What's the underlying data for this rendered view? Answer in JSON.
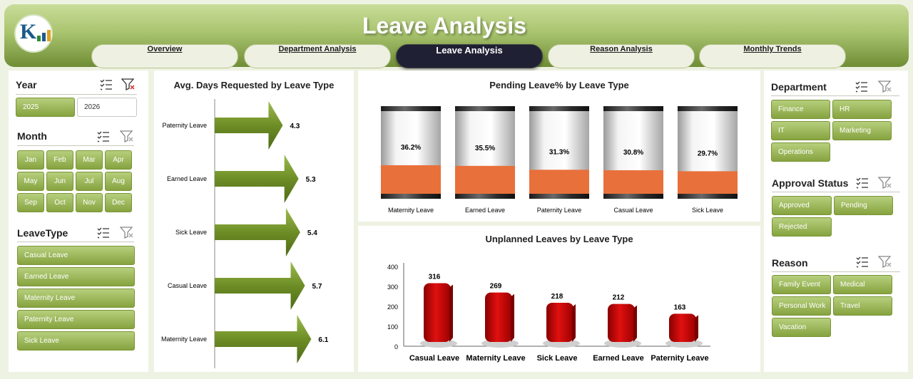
{
  "header": {
    "title": "Leave Analysis",
    "tabs": [
      "Overview",
      "Department Analysis",
      "Leave Analysis",
      "Reason Analysis",
      "Monthly Trends"
    ],
    "active_tab": "Leave Analysis"
  },
  "left_filters": {
    "year": {
      "title": "Year",
      "options": [
        "2025",
        "2026"
      ],
      "selected": "2025"
    },
    "month": {
      "title": "Month",
      "options": [
        "Jan",
        "Feb",
        "Mar",
        "Apr",
        "May",
        "Jun",
        "Jul",
        "Aug",
        "Sep",
        "Oct",
        "Nov",
        "Dec"
      ]
    },
    "leave_type": {
      "title": "LeaveType",
      "options": [
        "Casual Leave",
        "Earned Leave",
        "Maternity Leave",
        "Paternity Leave",
        "Sick Leave"
      ]
    }
  },
  "right_filters": {
    "department": {
      "title": "Department",
      "options": [
        "Finance",
        "HR",
        "IT",
        "Marketing",
        "Operations"
      ]
    },
    "approval": {
      "title": "Approval Status",
      "options": [
        "Approved",
        "Pending",
        "Rejected"
      ]
    },
    "reason": {
      "title": "Reason",
      "options": [
        "Family Event",
        "Medical",
        "Personal Work",
        "Travel",
        "Vacation"
      ]
    }
  },
  "chart_data": [
    {
      "type": "bar",
      "title": "Avg. Days Requested by Leave Type",
      "orientation": "horizontal",
      "categories": [
        "Paternity Leave",
        "Earned Leave",
        "Sick Leave",
        "Casual Leave",
        "Maternity Leave"
      ],
      "values": [
        4.3,
        5.3,
        5.4,
        5.7,
        6.1
      ],
      "color": "#6f8f2a"
    },
    {
      "type": "bar",
      "title": "Pending Leave% by Leave Type",
      "categories": [
        "Maternity Leave",
        "Earned Leave",
        "Paternity Leave",
        "Casual Leave",
        "Sick Leave"
      ],
      "values": [
        36.2,
        35.5,
        31.3,
        30.8,
        29.7
      ],
      "value_labels": [
        "36.2%",
        "35.5%",
        "31.3%",
        "30.8%",
        "29.7%"
      ],
      "ylim": [
        0,
        100
      ],
      "color": "#e8703a"
    },
    {
      "type": "bar",
      "title": "Unplanned Leaves by Leave Type",
      "categories": [
        "Casual Leave",
        "Maternity Leave",
        "Sick Leave",
        "Earned Leave",
        "Paternity Leave"
      ],
      "values": [
        316,
        269,
        218,
        212,
        163
      ],
      "yticks": [
        "0",
        "100",
        "200",
        "300",
        "400"
      ],
      "ylim": [
        0,
        400
      ],
      "color": "#cc0000"
    }
  ]
}
